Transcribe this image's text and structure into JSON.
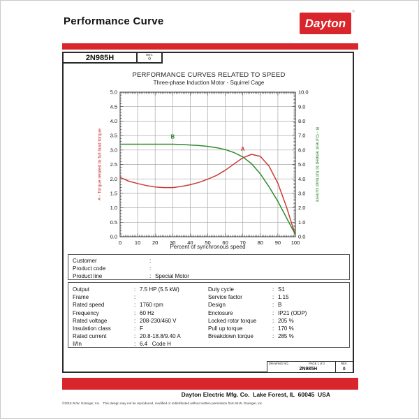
{
  "ui": {
    "colon": ":"
  },
  "colors": {
    "brand_red": "#d8262c",
    "curve_red": "#cc3b35",
    "curve_green": "#2e8b2e",
    "grid": "#a8a8a8",
    "frame": "#333333"
  },
  "header": {
    "title": "Performance Curve",
    "logo_text": "Dayton",
    "logo_reg": "®"
  },
  "model_box": {
    "model": "2N985H",
    "rev_label": "REV.",
    "rev_value": "0"
  },
  "chart_data": {
    "type": "line",
    "title": "PERFORMANCE CURVES RELATED TO SPEED",
    "subtitle": "Three-phase Induction Motor - Squirrel Cage",
    "xlabel": "Percent of synchronous speed",
    "y_left_label": "A - Torque related to full load torque",
    "y_right_label": "B - Current related to full load current",
    "xlim": [
      0,
      100
    ],
    "x_major": 10,
    "x_minor": 1,
    "y_left_lim": [
      0,
      5
    ],
    "y_left_major": 0.5,
    "y_left_minor": 0.1,
    "y_right_lim": [
      0,
      10
    ],
    "y_right_major": 1.0,
    "y_right_minor": 0.1,
    "grid": true,
    "series": [
      {
        "name": "torque",
        "label": "A",
        "axis": "left",
        "color": "#cc3b35",
        "x": [
          0,
          5,
          10,
          15,
          20,
          25,
          30,
          35,
          40,
          45,
          50,
          55,
          60,
          65,
          70,
          75,
          80,
          85,
          90,
          95,
          100
        ],
        "values": [
          2.05,
          1.92,
          1.84,
          1.77,
          1.72,
          1.7,
          1.7,
          1.74,
          1.8,
          1.88,
          1.99,
          2.12,
          2.3,
          2.52,
          2.73,
          2.85,
          2.78,
          2.44,
          1.85,
          1.02,
          0.05
        ],
        "label_pos": {
          "x": 70,
          "y": 2.97
        }
      },
      {
        "name": "current",
        "label": "B",
        "axis": "right",
        "color": "#2e8b2e",
        "x": [
          0,
          5,
          10,
          15,
          20,
          25,
          30,
          35,
          40,
          45,
          50,
          55,
          60,
          65,
          70,
          75,
          80,
          85,
          90,
          95,
          100
        ],
        "values": [
          6.4,
          6.4,
          6.4,
          6.4,
          6.4,
          6.4,
          6.4,
          6.38,
          6.35,
          6.31,
          6.25,
          6.16,
          6.03,
          5.82,
          5.52,
          5.05,
          4.35,
          3.45,
          2.45,
          1.3,
          0.15
        ],
        "label_pos": {
          "x": 30,
          "y": 6.78
        }
      }
    ]
  },
  "customer_box": {
    "rows": [
      {
        "label": "Customer",
        "value": ""
      },
      {
        "label": "Product code",
        "value": ""
      },
      {
        "label": "Product line",
        "value": "Special Motor"
      }
    ]
  },
  "spec_box": {
    "left": [
      {
        "label": "Output",
        "value": "7.5 HP (5.5 kW)"
      },
      {
        "label": "Frame",
        "value": ""
      },
      {
        "label": "Rated speed",
        "value": "1760 rpm"
      },
      {
        "label": "Frequency",
        "value": "60 Hz"
      },
      {
        "label": "Rated voltage",
        "value": "208-230/460 V"
      },
      {
        "label": "Insulation class",
        "value": "F"
      },
      {
        "label": "Rated current",
        "value": "20.8-18.8/9.40 A"
      },
      {
        "label": "Il/In",
        "value": "6.4   Code H"
      }
    ],
    "right": [
      {
        "label": "Duty cycle",
        "value": "S1"
      },
      {
        "label": "Service factor",
        "value": "1.15"
      },
      {
        "label": "Design",
        "value": "B"
      },
      {
        "label": "Enclosure",
        "value": "IP21 (ODP)"
      },
      {
        "label": "Locked rotor torque",
        "value": "205 %"
      },
      {
        "label": "Pull up torque",
        "value": "170 %"
      },
      {
        "label": "Breakdown torque",
        "value": "285 %"
      }
    ]
  },
  "drawing_box": {
    "drawing_no_label": "DRAWING NO.",
    "page_label": "PAGE 1 of 2",
    "rev_label": "REV.",
    "drawing_no": "2N985H",
    "rev_value": "0"
  },
  "footer": {
    "address": "Dayton Electric Mfg. Co.  Lake Forest, IL  60045  USA",
    "copyright": "©2015 W.W. Grainger, Inc.   This design may not be reproduced, modified or redistributed without written permission from W.W. Grainger, Inc."
  }
}
